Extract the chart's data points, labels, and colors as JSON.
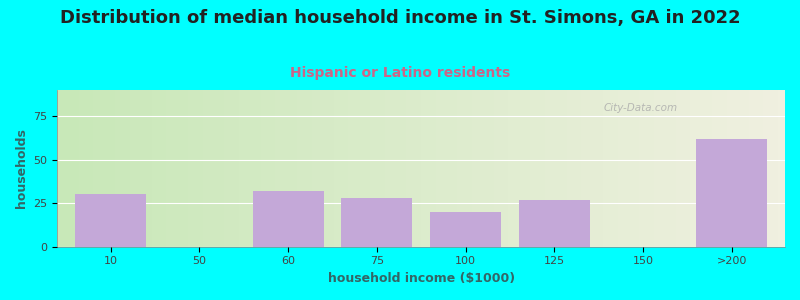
{
  "title": "Distribution of median household income in St. Simons, GA in 2022",
  "subtitle": "Hispanic or Latino residents",
  "xlabel": "household income ($1000)",
  "ylabel": "households",
  "background_color": "#00FFFF",
  "bar_color": "#C4A8D8",
  "categories": [
    "10",
    "50",
    "60",
    "75",
    "100",
    "125",
    "150",
    ">200"
  ],
  "values": [
    30,
    0,
    32,
    28,
    20,
    27,
    0,
    62
  ],
  "ylim": [
    0,
    90
  ],
  "yticks": [
    0,
    25,
    50,
    75
  ],
  "title_fontsize": 13,
  "subtitle_fontsize": 10,
  "title_color": "#222222",
  "subtitle_color": "#CC6688",
  "axis_label_fontsize": 9,
  "tick_fontsize": 8,
  "watermark_text": "City-Data.com",
  "chart_bg_gradient_left": "#c8e8b8",
  "chart_bg_gradient_right": "#f0f0e0"
}
